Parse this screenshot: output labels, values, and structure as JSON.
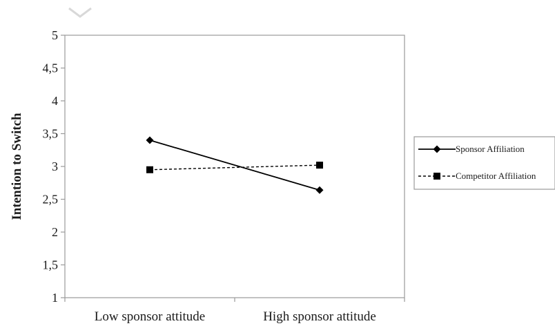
{
  "chart_data": {
    "type": "line",
    "categories": [
      "Low sponsor attitude",
      "High sponsor attitude"
    ],
    "series": [
      {
        "name": "Sponsor Affiliation",
        "values": [
          3.4,
          2.64
        ],
        "marker": "diamond",
        "line": "solid",
        "color": "#000000"
      },
      {
        "name": "Competitor Affiliation",
        "values": [
          2.95,
          3.02
        ],
        "marker": "square",
        "line": "dashed",
        "color": "#000000"
      }
    ],
    "title": "",
    "xlabel": "",
    "ylabel": "Intention to Switch",
    "ylim": [
      1,
      5
    ],
    "yticks": [
      "1",
      "1,5",
      "2",
      "2,5",
      "3",
      "3,5",
      "4",
      "4,5",
      "5"
    ],
    "grid": false,
    "legend_position": "right"
  }
}
